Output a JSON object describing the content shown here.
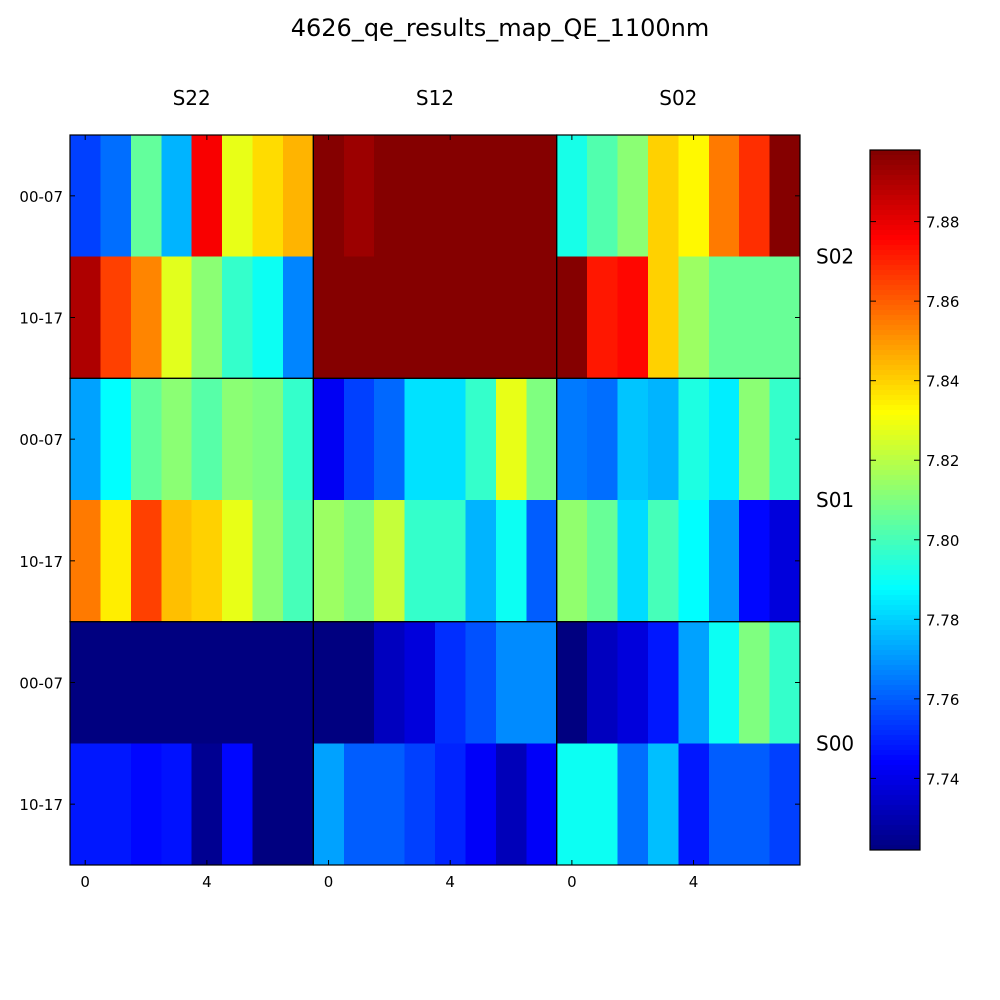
{
  "page": {
    "title": "4626_qe_results_map_QE_1100nm"
  },
  "chart_data": {
    "type": "heatmap",
    "title": "4626_qe_results_map_QE_1100nm",
    "column_groups": [
      "S22",
      "S12",
      "S02"
    ],
    "row_groups": [
      "S02",
      "S01",
      "S00"
    ],
    "row_labels": [
      "00-07",
      "10-17"
    ],
    "x_ticks": [
      "0",
      "4"
    ],
    "x_tick_positions": [
      0,
      4
    ],
    "colorbar": {
      "colormap": "jet",
      "range": [
        7.722,
        7.898
      ],
      "ticks": [
        "7.74",
        "7.76",
        "7.78",
        "7.80",
        "7.82",
        "7.84",
        "7.86",
        "7.88"
      ],
      "tick_values": [
        7.74,
        7.76,
        7.78,
        7.8,
        7.82,
        7.84,
        7.86,
        7.88
      ]
    },
    "cells": [
      [
        [
          [
            7.755,
            7.763,
            7.805,
            7.775,
            7.877,
            7.828,
            7.838,
            7.845
          ],
          [
            7.89,
            7.865,
            7.853,
            7.827,
            7.812,
            7.797,
            7.79,
            7.767
          ]
        ],
        [
          [
            7.897,
            7.893,
            7.897,
            7.897,
            7.897,
            7.897,
            7.897,
            7.897
          ],
          [
            7.897,
            7.897,
            7.897,
            7.897,
            7.897,
            7.897,
            7.897,
            7.897
          ]
        ],
        [
          [
            7.792,
            7.802,
            7.812,
            7.84,
            7.833,
            7.855,
            7.868,
            7.897
          ],
          [
            7.897,
            7.872,
            7.875,
            7.84,
            7.815,
            7.806,
            7.806,
            7.806
          ]
        ]
      ],
      [
        [
          [
            7.772,
            7.788,
            7.805,
            7.812,
            7.803,
            7.812,
            7.81,
            7.797
          ],
          [
            7.855,
            7.835,
            7.865,
            7.843,
            7.84,
            7.828,
            7.812,
            7.8
          ]
        ],
        [
          [
            7.742,
            7.755,
            7.762,
            7.783,
            7.783,
            7.797,
            7.828,
            7.81
          ],
          [
            7.815,
            7.81,
            7.822,
            7.797,
            7.797,
            7.775,
            7.79,
            7.76
          ]
        ],
        [
          [
            7.765,
            7.763,
            7.778,
            7.775,
            7.793,
            7.785,
            7.812,
            7.797
          ],
          [
            7.813,
            7.806,
            7.782,
            7.8,
            7.788,
            7.77,
            7.745,
            7.738
          ]
        ]
      ],
      [
        [
          [
            7.722,
            7.722,
            7.722,
            7.722,
            7.722,
            7.722,
            7.722,
            7.722
          ],
          [
            7.748,
            7.748,
            7.745,
            7.747,
            7.725,
            7.745,
            7.722,
            7.722
          ]
        ],
        [
          [
            7.722,
            7.722,
            7.733,
            7.738,
            7.752,
            7.758,
            7.768,
            7.768
          ],
          [
            7.772,
            7.76,
            7.76,
            7.755,
            7.75,
            7.743,
            7.732,
            7.743
          ]
        ],
        [
          [
            7.722,
            7.733,
            7.738,
            7.748,
            7.772,
            7.79,
            7.81,
            7.797
          ],
          [
            7.79,
            7.79,
            7.763,
            7.777,
            7.748,
            7.76,
            7.76,
            7.755
          ]
        ]
      ]
    ]
  }
}
